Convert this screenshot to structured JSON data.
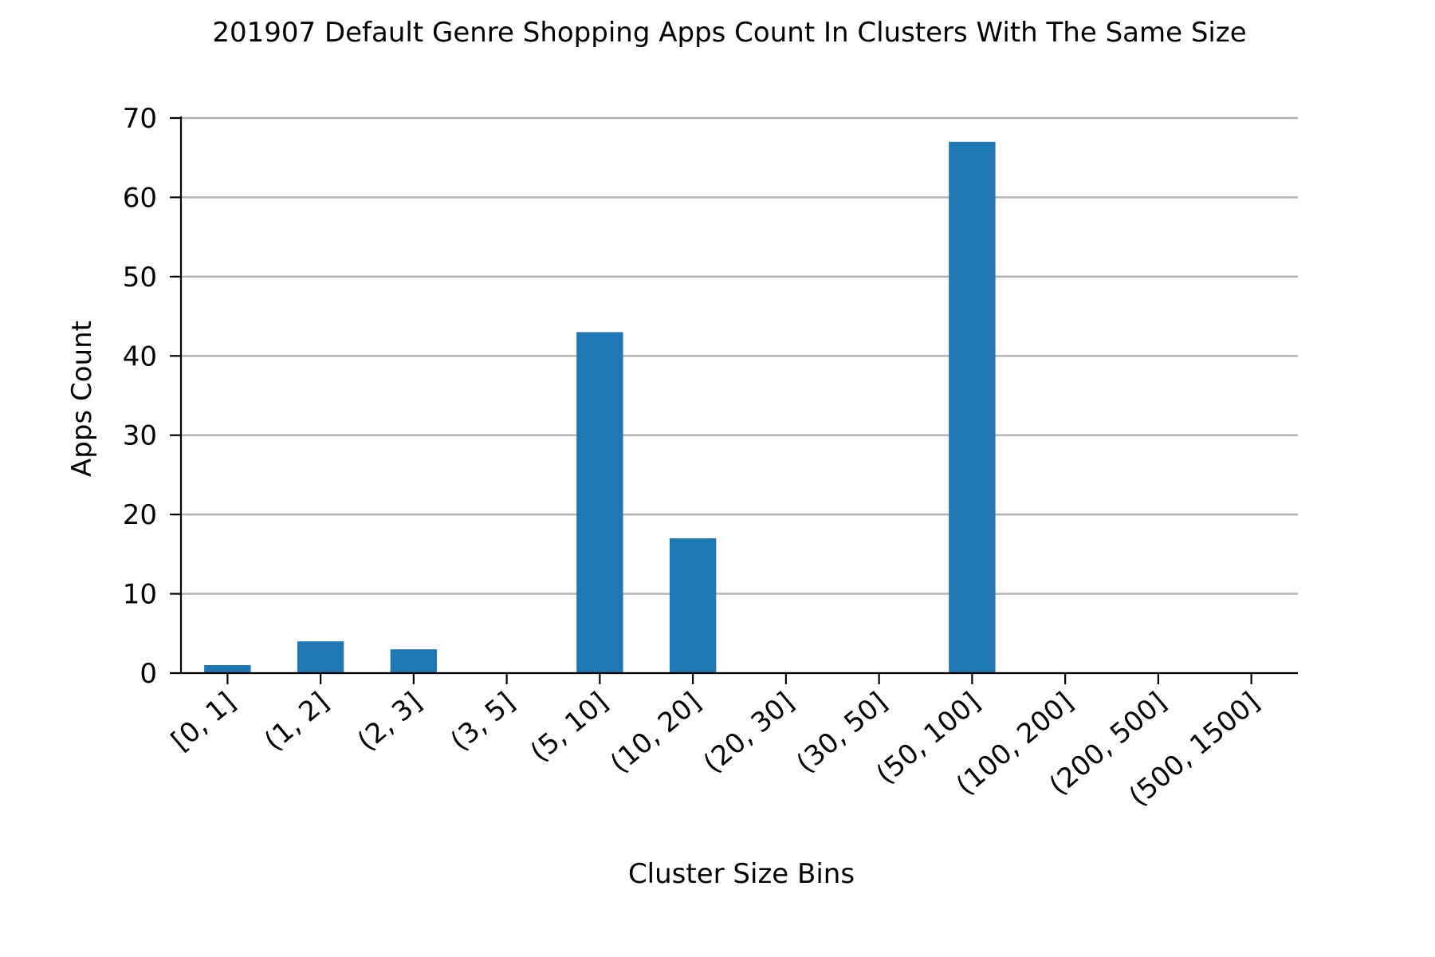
{
  "chart_data": {
    "type": "bar",
    "title": "201907 Default Genre Shopping Apps Count In Clusters With The Same Size",
    "xlabel": "Cluster Size Bins",
    "ylabel": "Apps Count",
    "categories": [
      "[0, 1]",
      "(1, 2]",
      "(2, 3]",
      "(3, 5]",
      "(5, 10]",
      "(10, 20]",
      "(20, 30]",
      "(30, 50]",
      "(50, 100]",
      "(100, 200]",
      "(200, 500]",
      "(500, 1500]"
    ],
    "values": [
      1,
      4,
      3,
      0,
      43,
      17,
      0,
      0,
      67,
      0,
      0,
      0
    ],
    "ylim": [
      0,
      70
    ],
    "yticks": [
      0,
      10,
      20,
      30,
      40,
      50,
      60,
      70
    ],
    "grid": "horizontal",
    "bar_color": "#1f77b4",
    "grid_color": "#b0b0b0"
  }
}
